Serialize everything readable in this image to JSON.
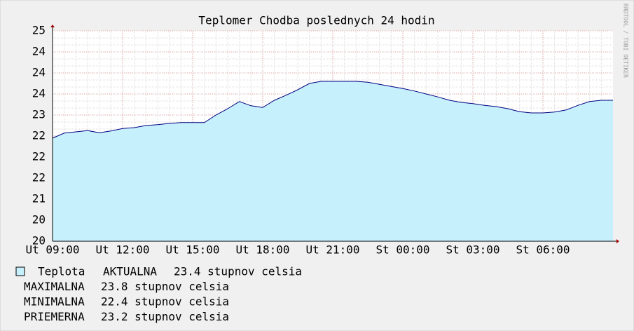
{
  "chart_data": {
    "type": "area",
    "title": "Teplomer Chodba poslednych 24 hodin",
    "watermark": "RRDTOOL / TOBI OETIKER",
    "x_tick_labels": [
      "Ut 09:00",
      "Ut 12:00",
      "Ut 15:00",
      "Ut 18:00",
      "Ut 21:00",
      "St 00:00",
      "St 03:00",
      "St 06:00"
    ],
    "ylim": [
      20,
      25
    ],
    "yticks": [
      20,
      {
        "value": 20.5,
        "label": "20"
      },
      21,
      {
        "value": 21.5,
        "label": "22"
      },
      22,
      {
        "value": 22.5,
        "label": "22"
      },
      23,
      {
        "value": 23.5,
        "label": "24"
      },
      24,
      {
        "value": 24.5,
        "label": "24"
      },
      25
    ],
    "grid": true,
    "series": [
      {
        "name": "Teplota",
        "color": "#c6f0fc",
        "line_color": "#000080",
        "values": [
          22.45,
          22.57,
          22.6,
          22.63,
          22.58,
          22.62,
          22.68,
          22.7,
          22.75,
          22.77,
          22.8,
          22.82,
          22.82,
          22.82,
          23.0,
          23.15,
          23.32,
          23.22,
          23.18,
          23.35,
          23.47,
          23.6,
          23.75,
          23.8,
          23.8,
          23.8,
          23.8,
          23.78,
          23.73,
          23.68,
          23.63,
          23.57,
          23.5,
          23.43,
          23.35,
          23.3,
          23.27,
          23.23,
          23.2,
          23.15,
          23.08,
          23.05,
          23.05,
          23.07,
          23.12,
          23.23,
          23.32,
          23.35,
          23.35
        ]
      }
    ],
    "legend": [
      {
        "label": "AKTUALNA",
        "text": "23.4 stupnov celsia"
      },
      {
        "label": "MAXIMALNA",
        "text": "23.8 stupnov celsia"
      },
      {
        "label": "MINIMALNA",
        "text": "22.4 stupnov celsia"
      },
      {
        "label": "PRIEMERNA",
        "text": "23.2 stupnov celsia"
      }
    ]
  }
}
